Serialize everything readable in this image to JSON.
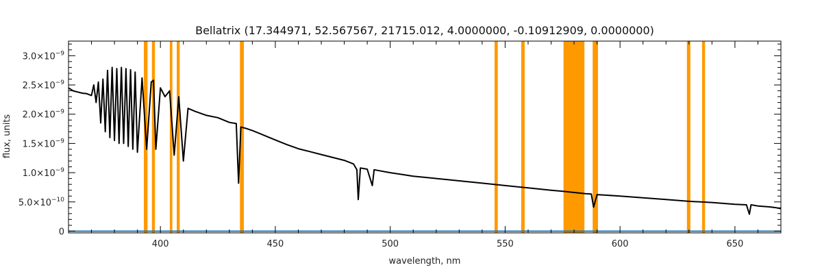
{
  "chart_data": {
    "type": "line",
    "title": "Bellatrix   (17.344971, 52.567567, 21715.012, 4.0000000, -0.10912909, 0.0000000)",
    "xlabel": "wavelength, nm",
    "ylabel": "flux, units",
    "xlim": [
      360,
      670
    ],
    "ylim": [
      -3e-11,
      3.25e-09
    ],
    "x_ticks": [
      400,
      450,
      500,
      550,
      600,
      650
    ],
    "x_tick_labels": [
      "400",
      "450",
      "500",
      "550",
      "600",
      "650"
    ],
    "y_ticks": [
      0,
      5e-10,
      1e-09,
      1.5e-09,
      2e-09,
      2.5e-09,
      3e-09
    ],
    "y_tick_labels": [
      {
        "mant": "0",
        "exp": ""
      },
      {
        "mant": "5.0×10",
        "exp": "−10"
      },
      {
        "mant": "1.0×10",
        "exp": "−9"
      },
      {
        "mant": "1.5×10",
        "exp": "−9"
      },
      {
        "mant": "2.0×10",
        "exp": "−9"
      },
      {
        "mant": "2.5×10",
        "exp": "−9"
      },
      {
        "mant": "3.0×10",
        "exp": "−9"
      }
    ],
    "grid": false,
    "colors": {
      "spectrum": "#000000",
      "baseline": "#1f77b4",
      "masked_bands": "#ff9900"
    },
    "masked_bands": [
      [
        392.8,
        394.4
      ],
      [
        396.3,
        397.6
      ],
      [
        404.1,
        405.2
      ],
      [
        407.1,
        408.4
      ],
      [
        434.6,
        436.3
      ],
      [
        545.4,
        546.8
      ],
      [
        557.0,
        558.5
      ],
      [
        575.4,
        584.5
      ],
      [
        588.1,
        590.4
      ],
      [
        629.1,
        630.6
      ],
      [
        635.7,
        637.0
      ]
    ],
    "series": [
      {
        "values_x": [
          360,
          362,
          364,
          366,
          368,
          370,
          371,
          372,
          373,
          374,
          375,
          376,
          377,
          378,
          379,
          380,
          381,
          382,
          383,
          384,
          385,
          386,
          387,
          388,
          389,
          390,
          392,
          394,
          396,
          397,
          398,
          400,
          402,
          404,
          406,
          408,
          410,
          412,
          415,
          420,
          425,
          430,
          433,
          434.0,
          435,
          437,
          440,
          445,
          450,
          455,
          460,
          465,
          470,
          475,
          480,
          484,
          485.5,
          486.1,
          487,
          490,
          492.2,
          493,
          500,
          505,
          510,
          515,
          520,
          525,
          530,
          540,
          550,
          560,
          570,
          575.5,
          585,
          587.5,
          588.5,
          590,
          600,
          610,
          620,
          630,
          640,
          650,
          655,
          656.3,
          657,
          660,
          665,
          668,
          670
        ],
        "values_y": [
          2.45e-09,
          2.4e-09,
          2.38e-09,
          2.36e-09,
          2.35e-09,
          2.32e-09,
          2.5e-09,
          2.2e-09,
          2.55e-09,
          1.85e-09,
          2.6e-09,
          1.7e-09,
          2.75e-09,
          1.6e-09,
          2.8e-09,
          1.55e-09,
          2.78e-09,
          1.5e-09,
          2.8e-09,
          1.5e-09,
          2.78e-09,
          1.45e-09,
          2.76e-09,
          1.4e-09,
          2.72e-09,
          1.35e-09,
          2.62e-09,
          1.4e-09,
          2.55e-09,
          2.58e-09,
          1.4e-09,
          2.45e-09,
          2.3e-09,
          2.4e-09,
          1.3e-09,
          2.3e-09,
          1.2e-09,
          2.1e-09,
          2.05e-09,
          1.98e-09,
          1.94e-09,
          1.86e-09,
          1.84e-09,
          8.2e-10,
          1.78e-09,
          1.76e-09,
          1.72e-09,
          1.64e-09,
          1.56e-09,
          1.48e-09,
          1.41e-09,
          1.36e-09,
          1.31e-09,
          1.26e-09,
          1.21e-09,
          1.15e-09,
          1.05e-09,
          5.4e-10,
          1.08e-09,
          1.06e-09,
          7.8e-10,
          1.05e-09,
          1e-09,
          9.7e-10,
          9.4e-10,
          9.2e-10,
          9e-10,
          8.8e-10,
          8.6e-10,
          8.2e-10,
          7.8e-10,
          7.4e-10,
          7e-10,
          6.8e-10,
          6.4e-10,
          6.35e-10,
          4.1e-10,
          6.25e-10,
          6e-10,
          5.7e-10,
          5.4e-10,
          5.1e-10,
          4.9e-10,
          4.6e-10,
          4.5e-10,
          2.9e-10,
          4.5e-10,
          4.3e-10,
          4.15e-10,
          4e-10,
          3.85e-10
        ]
      },
      {
        "values_x": [
          360,
          670
        ],
        "values_y": [
          0,
          0
        ]
      }
    ]
  }
}
